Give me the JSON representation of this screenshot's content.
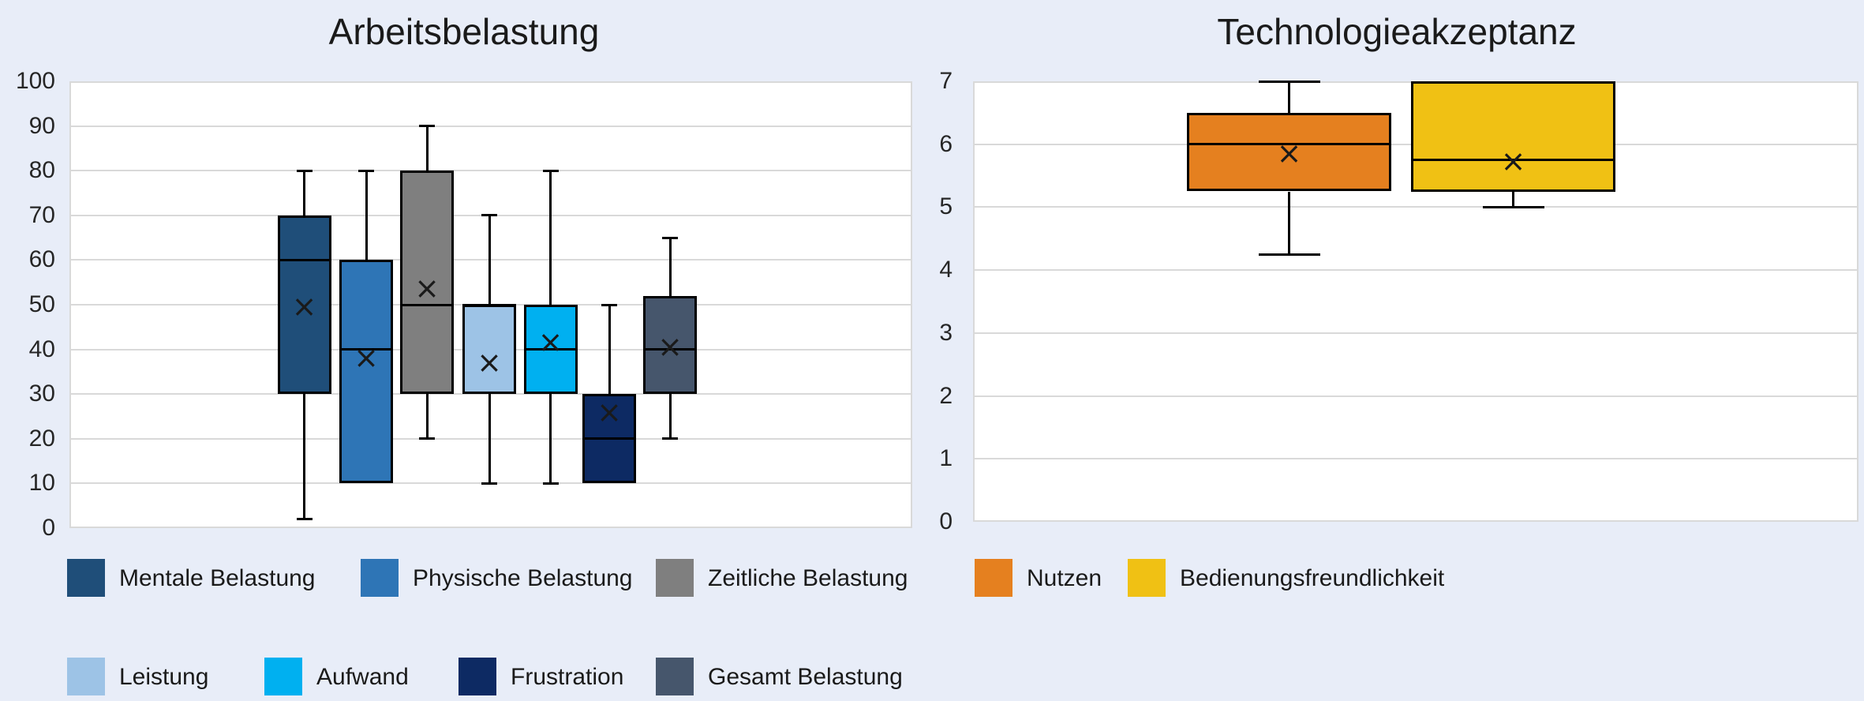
{
  "style": {
    "background": "#E8EDF8",
    "plot_background": "#FFFFFF",
    "gridline_color": "#D9D9D9",
    "box_border_color": "#000000",
    "whisker_color": "#000000",
    "title_color": "#1A1A1A",
    "axis_label_color": "#262626",
    "legend_label_color": "#1A1A1A",
    "mean_marker_color": "#1A1A1A"
  },
  "mean_marker_glyph": "×",
  "chart_data": [
    {
      "type": "box",
      "title": "Arbeitsbelastung",
      "xlabel": "",
      "ylabel": "",
      "ylim": [
        0,
        100
      ],
      "ytick_step": 10,
      "yticks": [
        "100",
        "90",
        "80",
        "70",
        "60",
        "50",
        "40",
        "30",
        "20",
        "10",
        "0"
      ],
      "grid": true,
      "legend_position": "bottom",
      "series": [
        {
          "name": "Mentale Belastung",
          "color": "#1F4E79",
          "whisker_low": 2,
          "q1": 30,
          "median": 60,
          "q3": 70,
          "whisker_high": 80,
          "mean": 49.5
        },
        {
          "name": "Physische Belastung",
          "color": "#2E75B6",
          "whisker_low": 10,
          "q1": 10,
          "median": 40,
          "q3": 60,
          "whisker_high": 80,
          "mean": 38
        },
        {
          "name": "Zeitliche Belastung",
          "color": "#7F7F7F",
          "whisker_low": 20,
          "q1": 30,
          "median": 50,
          "q3": 80,
          "whisker_high": 90,
          "mean": 53.5
        },
        {
          "name": "Leistung",
          "color": "#9DC3E6",
          "whisker_low": 10,
          "q1": 30,
          "median": 50,
          "q3": 50,
          "whisker_high": 70,
          "mean": 37
        },
        {
          "name": "Aufwand",
          "color": "#00B0F0",
          "whisker_low": 10,
          "q1": 30,
          "median": 40,
          "q3": 50,
          "whisker_high": 80,
          "mean": 41.5
        },
        {
          "name": "Frustration",
          "color": "#0D2A63",
          "whisker_low": 10,
          "q1": 10,
          "median": 20,
          "q3": 30,
          "whisker_high": 50,
          "mean": 25.8
        },
        {
          "name": "Gesamt Belastung",
          "color": "#46566C",
          "whisker_low": 20,
          "q1": 30,
          "median": 40,
          "q3": 52,
          "whisker_high": 65,
          "mean": 40.5
        }
      ]
    },
    {
      "type": "box",
      "title": "Technologieakzeptanz",
      "xlabel": "",
      "ylabel": "",
      "ylim": [
        0,
        7
      ],
      "ytick_step": 1,
      "yticks": [
        "7",
        "6",
        "5",
        "4",
        "3",
        "2",
        "1",
        "0"
      ],
      "grid": true,
      "legend_position": "bottom",
      "series": [
        {
          "name": "Nutzen",
          "color": "#E5801F",
          "whisker_low": 4.25,
          "q1": 5.25,
          "median": 6,
          "q3": 6.5,
          "whisker_high": 7,
          "mean": 5.85
        },
        {
          "name": "Bedienungsfreundlichkeit",
          "color": "#F0C114",
          "whisker_low": 5,
          "q1": 5.25,
          "median": 5.75,
          "q3": 7,
          "whisker_high": 7,
          "mean": 5.72
        }
      ]
    }
  ]
}
